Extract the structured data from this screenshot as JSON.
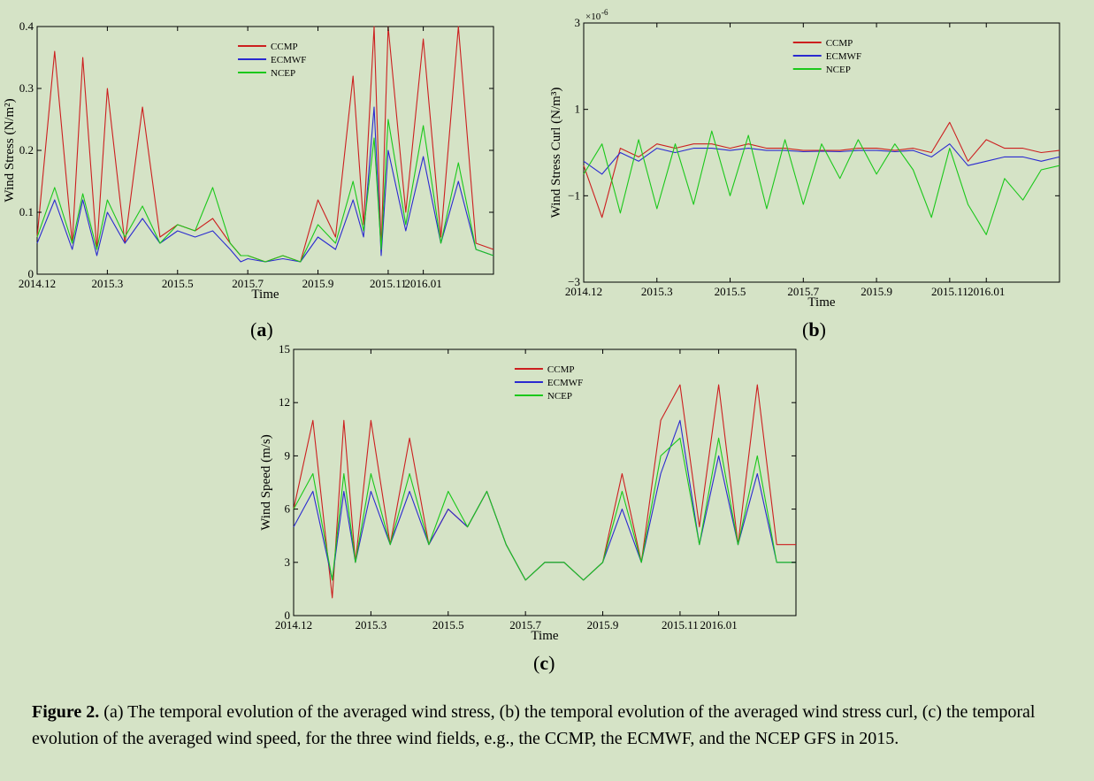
{
  "chart_data": [
    {
      "id": "a",
      "type": "line",
      "ylabel": "Wind Stress (N/m²)",
      "xlabel": "Time",
      "ylim": [
        0,
        0.4
      ],
      "yticks": [
        0,
        0.1,
        0.2,
        0.3,
        0.4
      ],
      "ytick_labels": [
        "0",
        "0.1",
        "0.2",
        "0.3",
        "0.4"
      ],
      "xlim": [
        0,
        13
      ],
      "xticks": [
        0,
        2,
        4,
        6,
        8,
        10,
        11
      ],
      "xtick_labels": [
        "2014.12",
        "2015.3",
        "2015.5",
        "2015.7",
        "2015.9",
        "2015.11",
        "2016.01"
      ],
      "legend": [
        "CCMP",
        "ECMWF",
        "NCEP"
      ],
      "series": [
        {
          "name": "CCMP",
          "color": "#cc1f1f",
          "x": [
            0,
            0.5,
            1,
            1.3,
            1.7,
            2,
            2.5,
            3,
            3.5,
            4,
            4.5,
            5,
            5.5,
            5.8,
            6,
            6.5,
            7,
            7.5,
            8,
            8.5,
            9,
            9.3,
            9.6,
            9.8,
            10,
            10.5,
            11,
            11.5,
            12,
            12.5,
            13
          ],
          "y": [
            0.06,
            0.36,
            0.05,
            0.35,
            0.04,
            0.3,
            0.05,
            0.27,
            0.06,
            0.08,
            0.07,
            0.09,
            0.05,
            0.03,
            0.03,
            0.02,
            0.03,
            0.02,
            0.12,
            0.06,
            0.32,
            0.08,
            0.4,
            0.04,
            0.4,
            0.1,
            0.38,
            0.06,
            0.4,
            0.05,
            0.04
          ]
        },
        {
          "name": "ECMWF",
          "color": "#2a2ad0",
          "x": [
            0,
            0.5,
            1,
            1.3,
            1.7,
            2,
            2.5,
            3,
            3.5,
            4,
            4.5,
            5,
            5.5,
            5.8,
            6,
            6.5,
            7,
            7.5,
            8,
            8.5,
            9,
            9.3,
            9.6,
            9.8,
            10,
            10.5,
            11,
            11.5,
            12,
            12.5,
            13
          ],
          "y": [
            0.05,
            0.12,
            0.04,
            0.12,
            0.03,
            0.1,
            0.05,
            0.09,
            0.05,
            0.07,
            0.06,
            0.07,
            0.04,
            0.02,
            0.025,
            0.02,
            0.025,
            0.02,
            0.06,
            0.04,
            0.12,
            0.06,
            0.27,
            0.03,
            0.2,
            0.07,
            0.19,
            0.05,
            0.15,
            0.04,
            0.03
          ]
        },
        {
          "name": "NCEP",
          "color": "#1bc81b",
          "x": [
            0,
            0.5,
            1,
            1.3,
            1.7,
            2,
            2.5,
            3,
            3.5,
            4,
            4.5,
            5,
            5.5,
            5.8,
            6,
            6.5,
            7,
            7.5,
            8,
            8.5,
            9,
            9.3,
            9.6,
            9.8,
            10,
            10.5,
            11,
            11.5,
            12,
            12.5,
            13
          ],
          "y": [
            0.06,
            0.14,
            0.05,
            0.13,
            0.04,
            0.12,
            0.06,
            0.11,
            0.05,
            0.08,
            0.07,
            0.14,
            0.05,
            0.03,
            0.03,
            0.02,
            0.03,
            0.02,
            0.08,
            0.05,
            0.15,
            0.07,
            0.22,
            0.04,
            0.25,
            0.08,
            0.24,
            0.05,
            0.18,
            0.04,
            0.03
          ]
        }
      ]
    },
    {
      "id": "b",
      "type": "line",
      "ylabel": "Wind Stress Curl (N/m³)",
      "xlabel": "Time",
      "multiplier": "×10",
      "multiplier_exp": "-6",
      "ylim": [
        -3,
        3
      ],
      "yticks": [
        -3,
        -1,
        1,
        3
      ],
      "ytick_labels": [
        "−3",
        "−1",
        "1",
        "3"
      ],
      "xlim": [
        0,
        13
      ],
      "xticks": [
        0,
        2,
        4,
        6,
        8,
        10,
        11
      ],
      "xtick_labels": [
        "2014.12",
        "2015.3",
        "2015.5",
        "2015.7",
        "2015.9",
        "2015.11",
        "2016.01"
      ],
      "legend": [
        "CCMP",
        "ECMWF",
        "NCEP"
      ],
      "series": [
        {
          "name": "CCMP",
          "color": "#cc1f1f",
          "x": [
            0,
            0.5,
            1,
            1.5,
            2,
            2.5,
            3,
            3.5,
            4,
            4.5,
            5,
            5.5,
            6,
            6.5,
            7,
            7.5,
            8,
            8.5,
            9,
            9.5,
            10,
            10.5,
            11,
            11.5,
            12,
            12.5,
            13
          ],
          "y": [
            -0.3,
            -1.5,
            0.1,
            -0.1,
            0.2,
            0.1,
            0.2,
            0.2,
            0.1,
            0.2,
            0.1,
            0.1,
            0.05,
            0.05,
            0.05,
            0.1,
            0.1,
            0.05,
            0.1,
            0.0,
            0.7,
            -0.2,
            0.3,
            0.1,
            0.1,
            0.0,
            0.05
          ]
        },
        {
          "name": "ECMWF",
          "color": "#2a2ad0",
          "x": [
            0,
            0.5,
            1,
            1.5,
            2,
            2.5,
            3,
            3.5,
            4,
            4.5,
            5,
            5.5,
            6,
            6.5,
            7,
            7.5,
            8,
            8.5,
            9,
            9.5,
            10,
            10.5,
            11,
            11.5,
            12,
            12.5,
            13
          ],
          "y": [
            -0.2,
            -0.5,
            0.0,
            -0.2,
            0.1,
            0.0,
            0.1,
            0.1,
            0.05,
            0.1,
            0.05,
            0.05,
            0.02,
            0.03,
            0.02,
            0.05,
            0.05,
            0.02,
            0.05,
            -0.1,
            0.2,
            -0.3,
            -0.2,
            -0.1,
            -0.1,
            -0.2,
            -0.1
          ]
        },
        {
          "name": "NCEP",
          "color": "#1bc81b",
          "x": [
            0,
            0.5,
            1,
            1.5,
            2,
            2.5,
            3,
            3.5,
            4,
            4.5,
            5,
            5.5,
            6,
            6.5,
            7,
            7.5,
            8,
            8.5,
            9,
            9.5,
            10,
            10.5,
            11,
            11.5,
            12,
            12.5,
            13
          ],
          "y": [
            -0.5,
            0.2,
            -1.4,
            0.3,
            -1.3,
            0.2,
            -1.2,
            0.5,
            -1.0,
            0.4,
            -1.3,
            0.3,
            -1.2,
            0.2,
            -0.6,
            0.3,
            -0.5,
            0.2,
            -0.4,
            -1.5,
            0.1,
            -1.2,
            -1.9,
            -0.6,
            -1.1,
            -0.4,
            -0.3
          ]
        }
      ]
    },
    {
      "id": "c",
      "type": "line",
      "ylabel": "Wind Speed (m/s)",
      "xlabel": "Time",
      "ylim": [
        0,
        15
      ],
      "yticks": [
        0,
        3,
        6,
        9,
        12,
        15
      ],
      "ytick_labels": [
        "0",
        "3",
        "6",
        "9",
        "12",
        "15"
      ],
      "xlim": [
        0,
        13
      ],
      "xticks": [
        0,
        2,
        4,
        6,
        8,
        10,
        11
      ],
      "xtick_labels": [
        "2014.12",
        "2015.3",
        "2015.5",
        "2015.7",
        "2015.9",
        "2015.11",
        "2016.01"
      ],
      "legend": [
        "CCMP",
        "ECMWF",
        "NCEP"
      ],
      "series": [
        {
          "name": "CCMP",
          "color": "#cc1f1f",
          "x": [
            0,
            0.5,
            1,
            1.3,
            1.6,
            2,
            2.5,
            3,
            3.5,
            4,
            4.5,
            5,
            5.5,
            6,
            6.5,
            7,
            7.5,
            8,
            8.5,
            9,
            9.5,
            10,
            10.5,
            11,
            11.5,
            12,
            12.5,
            13
          ],
          "y": [
            6,
            11,
            1,
            11,
            3,
            11,
            4,
            10,
            4,
            6,
            5,
            7,
            4,
            2,
            3,
            3,
            2,
            3,
            8,
            3,
            11,
            13,
            5,
            13,
            4,
            13,
            4,
            4
          ]
        },
        {
          "name": "ECMWF",
          "color": "#2a2ad0",
          "x": [
            0,
            0.5,
            1,
            1.3,
            1.6,
            2,
            2.5,
            3,
            3.5,
            4,
            4.5,
            5,
            5.5,
            6,
            6.5,
            7,
            7.5,
            8,
            8.5,
            9,
            9.5,
            10,
            10.5,
            11,
            11.5,
            12,
            12.5,
            13
          ],
          "y": [
            5,
            7,
            2,
            7,
            3,
            7,
            4,
            7,
            4,
            6,
            5,
            7,
            4,
            2,
            3,
            3,
            2,
            3,
            6,
            3,
            8,
            11,
            4,
            9,
            4,
            8,
            3,
            3
          ]
        },
        {
          "name": "NCEP",
          "color": "#1bc81b",
          "x": [
            0,
            0.5,
            1,
            1.3,
            1.6,
            2,
            2.5,
            3,
            3.5,
            4,
            4.5,
            5,
            5.5,
            6,
            6.5,
            7,
            7.5,
            8,
            8.5,
            9,
            9.5,
            10,
            10.5,
            11,
            11.5,
            12,
            12.5,
            13
          ],
          "y": [
            6,
            8,
            2,
            8,
            3,
            8,
            4,
            8,
            4,
            7,
            5,
            7,
            4,
            2,
            3,
            3,
            2,
            3,
            7,
            3,
            9,
            10,
            4,
            10,
            4,
            9,
            3,
            3
          ]
        }
      ]
    }
  ],
  "panel_labels": [
    "a",
    "b",
    "c"
  ],
  "caption": {
    "label": "Figure 2.",
    "text": "(a) The temporal evolution of the averaged wind stress, (b) the temporal evolution of the averaged wind stress curl, (c) the temporal evolution of the averaged wind speed, for the three wind fields, e.g., the CCMP, the ECMWF, and the NCEP GFS in 2015."
  }
}
